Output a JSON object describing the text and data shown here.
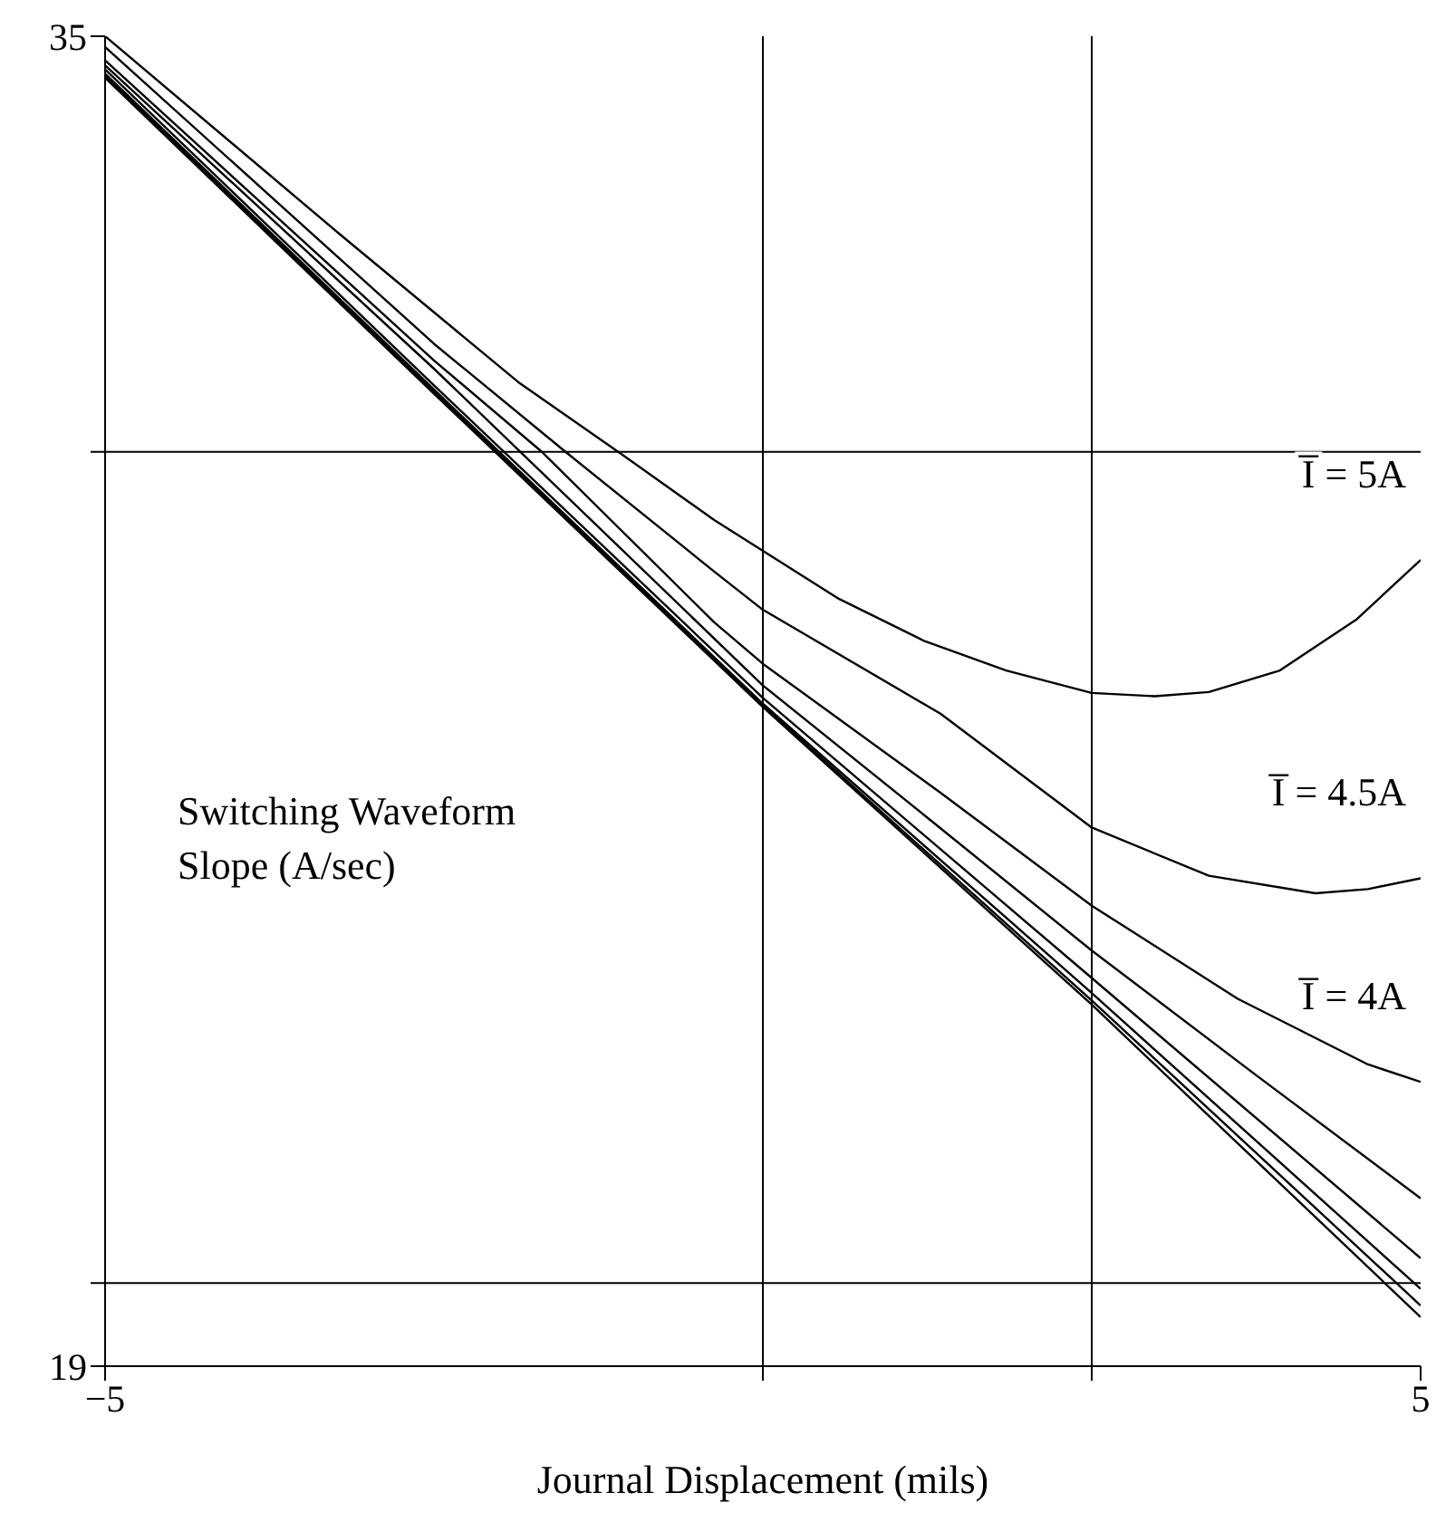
{
  "chart_data": {
    "type": "line",
    "xlabel": "Journal Displacement (mils)",
    "ylabel": "Switching Waveform Slope (A/sec)",
    "xlim": [
      -5,
      5
    ],
    "ylim": [
      19,
      35
    ],
    "xticks": [
      {
        "value": -5,
        "label": "−5"
      },
      {
        "value": 0,
        "label": null
      },
      {
        "value": 2.5,
        "label": null
      },
      5
    ],
    "yticks": [
      19,
      {
        "value": 20,
        "label": null
      },
      {
        "value": 30,
        "label": null
      },
      35
    ],
    "grid": true,
    "marker": "none",
    "line_style": "solid",
    "legend": false,
    "series": [
      {
        "name": "I̅ = 5A",
        "color": "#000000",
        "x": [
          -5,
          -3.21,
          -1.86,
          -1.09,
          -0.37,
          0,
          0.58,
          1.22,
          1.85,
          2.5,
          2.98,
          3.39,
          3.93,
          4.51,
          5
        ],
        "values": [
          35.0,
          32.61,
          30.84,
          29.99,
          29.18,
          28.81,
          28.23,
          27.73,
          27.37,
          27.1,
          27.06,
          27.11,
          27.37,
          27.98,
          28.7
        ]
      },
      {
        "name": "I̅ = 4.5A",
        "color": "#000000",
        "x": [
          -5,
          -2.5,
          -1.5,
          -0.37,
          0,
          1.35,
          2.5,
          3.39,
          4.2,
          4.6,
          5
        ],
        "values": [
          34.87,
          31.3,
          30.0,
          28.56,
          28.1,
          26.85,
          25.48,
          24.9,
          24.69,
          24.74,
          24.87
        ]
      },
      {
        "name": "I̅ = 4A",
        "color": "#000000",
        "x": [
          -5,
          -2.5,
          -1.68,
          -0.37,
          0,
          1.35,
          2.5,
          3.61,
          4.6,
          5
        ],
        "values": [
          34.71,
          31.1,
          30.0,
          27.95,
          27.45,
          25.9,
          24.54,
          23.42,
          22.63,
          22.42
        ]
      },
      {
        "color": "#000000",
        "x": [
          -5,
          -2.5,
          0,
          1.25,
          2.5,
          3.75,
          5
        ],
        "values": [
          34.65,
          31.0,
          27.19,
          25.6,
          24.0,
          22.5,
          21.02
        ]
      },
      {
        "color": "#000000",
        "x": [
          -5,
          -2.5,
          0,
          2.5,
          5
        ],
        "values": [
          34.6,
          30.8,
          27.04,
          23.67,
          20.3
        ]
      },
      {
        "color": "#000000",
        "x": [
          -5,
          -2.5,
          0,
          2.5,
          5
        ],
        "values": [
          34.55,
          30.75,
          26.97,
          23.49,
          19.93
        ]
      },
      {
        "color": "#000000",
        "x": [
          -5,
          -2.5,
          0,
          2.5,
          5
        ],
        "values": [
          34.53,
          30.72,
          26.95,
          23.4,
          19.73
        ]
      },
      {
        "color": "#000000",
        "x": [
          -5,
          -2.5,
          0,
          2.5,
          5
        ],
        "values": [
          34.5,
          30.7,
          26.93,
          23.35,
          19.59
        ]
      }
    ]
  }
}
